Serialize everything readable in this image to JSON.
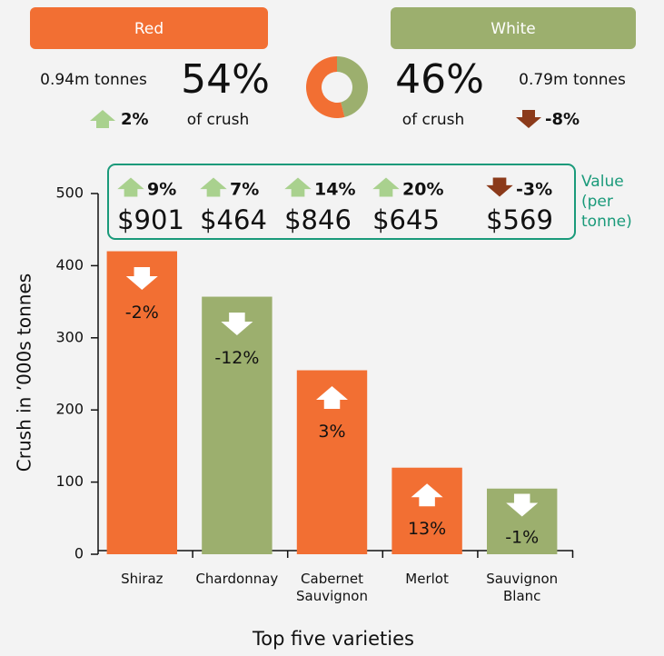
{
  "header": {
    "red": {
      "label": "Red",
      "tonnes": "0.94m tonnes",
      "share": 54,
      "share_label": "54%",
      "of_crush": "of crush",
      "change": "2%",
      "color": "#f26f33"
    },
    "white": {
      "label": "White",
      "tonnes": "0.79m tonnes",
      "share": 46,
      "share_label": "46%",
      "of_crush": "of crush",
      "change": "-8%",
      "color": "#9caf6e"
    }
  },
  "chart_data": {
    "type": "bar",
    "categories": [
      "Shiraz",
      "Chardonnay",
      "Cabernet Sauvignon",
      "Merlot",
      "Sauvignon Blanc"
    ],
    "values": [
      420,
      357,
      255,
      120,
      91
    ],
    "colors": [
      "#f26f33",
      "#9caf6e",
      "#f26f33",
      "#f26f33",
      "#9caf6e"
    ],
    "changes": [
      "-2%",
      "-12%",
      "3%",
      "13%",
      "-1%"
    ],
    "ylim": [
      0,
      500
    ],
    "yticks": [
      0,
      100,
      200,
      300,
      400,
      500
    ],
    "ylabel": "Crush in ’000s tonnes",
    "xlabel": "Top five varieties",
    "value_box": {
      "title": "Value (per tonne)",
      "changes": [
        "9%",
        "7%",
        "14%",
        "20%",
        "-3%"
      ],
      "prices": [
        "$901",
        "$464",
        "$846",
        "$645",
        "$569"
      ]
    }
  }
}
